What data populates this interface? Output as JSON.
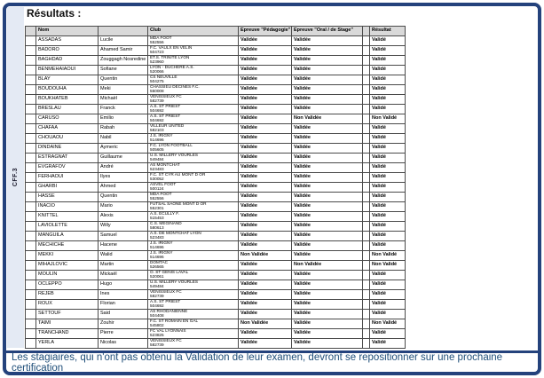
{
  "page": {
    "title": "Résultats :",
    "sidebar_label": "CFF.3",
    "footer_note": "Les stagiaires, qui n'ont pas obtenu la Validation de leur examen, devront se repositionner sur une prochaine certification"
  },
  "colors": {
    "valid_green": "#ccff99",
    "invalid_orange": "#ff6600",
    "frame_navy": "#24427c",
    "header_gray": "#d9d9d9",
    "note_blue": "#1f4e79"
  },
  "table": {
    "headers": {
      "edge": "",
      "nom": "Nom",
      "prenom": "",
      "club": "Club",
      "pedagogie": "Epreuve \"Pédagogie\"",
      "oral": "Epreuve \"Oral / de Stage\"",
      "gap": "",
      "resultat": "Résultat"
    },
    "status_labels": {
      "valid_f": "Validée",
      "invalid_f": "Non Validée",
      "valid_m": "Validé",
      "invalid_m": "Non Validé"
    },
    "rows": [
      {
        "nom": "ASSADAS",
        "prenom": "Lucile",
        "club": "MDA FOOT",
        "club_id": "552556",
        "pedagogie": "Validée",
        "oral": "Validée",
        "resultat": "Validé"
      },
      {
        "nom": "BADORO",
        "prenom": "Ahamed Samir",
        "club": "F.C. VAULX EN VELIN",
        "club_id": "504723",
        "pedagogie": "Validée",
        "oral": "Validée",
        "resultat": "Validé"
      },
      {
        "nom": "BAGHDAD",
        "prenom": "Zouggagh Nosredine",
        "club": "ET.S. TRINITE LYON",
        "club_id": "523960",
        "pedagogie": "Validée",
        "oral": "Validée",
        "resultat": "Validé"
      },
      {
        "nom": "BENMEHAIAOUI",
        "prenom": "Sofiane",
        "club": "LYON - DUCHERE A.S.",
        "club_id": "520066",
        "pedagogie": "Validée",
        "oral": "Validée",
        "resultat": "Validé"
      },
      {
        "nom": "BLAY",
        "prenom": "Quentin",
        "club": "CS NEUVILLE",
        "club_id": "504275",
        "pedagogie": "Validée",
        "oral": "Validée",
        "resultat": "Validé"
      },
      {
        "nom": "BOUDOUHA",
        "prenom": "Meki",
        "club": "CHASSIEU DECINES F.C.",
        "club_id": "550008",
        "pedagogie": "Validée",
        "oral": "Validée",
        "resultat": "Validé"
      },
      {
        "nom": "BOUKHATEB",
        "prenom": "Michaël",
        "club": "VENISSIEUX FC",
        "club_id": "582739",
        "pedagogie": "Validée",
        "oral": "Validée",
        "resultat": "Validé"
      },
      {
        "nom": "BRESLAU",
        "prenom": "Franck",
        "club": "A.S. ST PRIEST",
        "club_id": "504692",
        "pedagogie": "Validée",
        "oral": "Validée",
        "resultat": "Validé"
      },
      {
        "nom": "CARUSO",
        "prenom": "Emilio",
        "club": "A.S. ST PRIEST",
        "club_id": "504692",
        "pedagogie": "Validée",
        "oral": "Non Validée",
        "resultat": "Non Validé"
      },
      {
        "nom": "CHAFAA",
        "prenom": "Rabah",
        "club": "VILLEUR UNITED",
        "club_id": "582103",
        "pedagogie": "Validée",
        "oral": "Validée",
        "resultat": "Validé"
      },
      {
        "nom": "CHOUAOU",
        "prenom": "Nabil",
        "club": "J.S. IRIGNY",
        "club_id": "514696",
        "pedagogie": "Validée",
        "oral": "Validée",
        "resultat": "Validé"
      },
      {
        "nom": "DINDAINE",
        "prenom": "Aymeric",
        "club": "F.C. LYON FOOTBALL",
        "club_id": "505605",
        "pedagogie": "Validée",
        "oral": "Validée",
        "resultat": "Validé"
      },
      {
        "nom": "ESTRAGNAT",
        "prenom": "Guillaume",
        "club": "U.S. MILLERY VOURLES",
        "club_id": "549484",
        "pedagogie": "Validée",
        "oral": "Validée",
        "resultat": "Validé"
      },
      {
        "nom": "EVGRAFOV",
        "prenom": "André",
        "club": "AS MONTCHAT",
        "club_id": "523483",
        "pedagogie": "Validée",
        "oral": "Validée",
        "resultat": "Validé"
      },
      {
        "nom": "FERHAOUI",
        "prenom": "Ilyes",
        "club": "F.C. ST CYR AU MONT D OR",
        "club_id": "530052",
        "pedagogie": "Validée",
        "oral": "Validée",
        "resultat": "Validé"
      },
      {
        "nom": "GHARBI",
        "prenom": "Ahmed",
        "club": "ASVEL FOOT",
        "club_id": "500124",
        "pedagogie": "Validée",
        "oral": "Validée",
        "resultat": "Validé"
      },
      {
        "nom": "HASSE",
        "prenom": "Quentin",
        "club": "MDA FOOT",
        "club_id": "552556",
        "pedagogie": "Validée",
        "oral": "Validée",
        "resultat": "Validé"
      },
      {
        "nom": "INACIO",
        "prenom": "Mario",
        "club": "FUTSAL SAONE MONT D OR",
        "club_id": "552301",
        "pedagogie": "Validée",
        "oral": "Validée",
        "resultat": "Validé"
      },
      {
        "nom": "KNITTEL",
        "prenom": "Alexis",
        "club": "A.S. ECULLY F.",
        "club_id": "515453",
        "pedagogie": "Validée",
        "oral": "Validée",
        "resultat": "Validé"
      },
      {
        "nom": "LAVIOLETTE",
        "prenom": "Willy",
        "club": "C.S. MEGINAND",
        "club_id": "580613",
        "pedagogie": "Validée",
        "oral": "Validée",
        "resultat": "Validé"
      },
      {
        "nom": "MANGUILA",
        "prenom": "Samuel",
        "club": "A.S. DE MONTCHAT LYON",
        "club_id": "523483",
        "pedagogie": "Validée",
        "oral": "Validée",
        "resultat": "Validé"
      },
      {
        "nom": "MECHICHE",
        "prenom": "Hacene",
        "club": "J.S. IRIGNY",
        "club_id": "514696",
        "pedagogie": "Validée",
        "oral": "Validée",
        "resultat": "Validé"
      },
      {
        "nom": "MEKKI",
        "prenom": "Walid",
        "club": "J.S. IRIGNY",
        "club_id": "514696",
        "pedagogie": "Non Validée",
        "oral": "Validée",
        "resultat": "Non Validé"
      },
      {
        "nom": "MIHAJLOVIC",
        "prenom": "Martin",
        "club": "DOMTAC",
        "club_id": "526565",
        "pedagogie": "Validée",
        "oral": "Non Validée",
        "resultat": "Non Validé"
      },
      {
        "nom": "MOULIN",
        "prenom": "Mickaël",
        "club": "O. ST GENIS LAVAL",
        "club_id": "520061",
        "pedagogie": "Validée",
        "oral": "Validée",
        "resultat": "Validé"
      },
      {
        "nom": "OCLEPPO",
        "prenom": "Hugo",
        "club": "U.S. MILLERY VOURLES",
        "club_id": "549484",
        "pedagogie": "Validée",
        "oral": "Validée",
        "resultat": "Validé"
      },
      {
        "nom": "REJEB",
        "prenom": "Ines",
        "club": "VENISSIEUX FC",
        "club_id": "582739",
        "pedagogie": "Validée",
        "oral": "Validée",
        "resultat": "Validé"
      },
      {
        "nom": "ROUX",
        "prenom": "Florian",
        "club": "A.S. ST PRIEST",
        "club_id": "504692",
        "pedagogie": "Validée",
        "oral": "Validée",
        "resultat": "Validé"
      },
      {
        "nom": "SETTOUF",
        "prenom": "Said",
        "club": "AS RHODANIENNE",
        "club_id": "504408",
        "pedagogie": "Validée",
        "oral": "Validée",
        "resultat": "Validé"
      },
      {
        "nom": "TAIMI",
        "prenom": "Zouhir",
        "club": "F.C. ST ROMAIN EN GAL",
        "club_id": "545802",
        "pedagogie": "Non Validée",
        "oral": "Validée",
        "resultat": "Non Validé"
      },
      {
        "nom": "TRANCHAND",
        "prenom": "Pierre",
        "club": "FC VAL LYONNAIS",
        "club_id": "523825",
        "pedagogie": "Validée",
        "oral": "Validée",
        "resultat": "Validé"
      },
      {
        "nom": "YERLA",
        "prenom": "Nicolas",
        "club": "VENISSIEUX FC",
        "club_id": "582739",
        "pedagogie": "Validée",
        "oral": "Validée",
        "resultat": "Validé"
      }
    ]
  }
}
